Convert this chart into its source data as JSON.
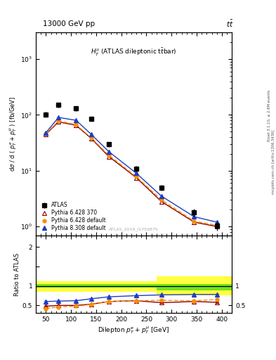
{
  "title_top": "13000 GeV pp",
  "title_right": "t$\\bar{t}$",
  "plot_label": "$H_T^{ll}$ (ATLAS dileptonic t$\\bar{t}$bar)",
  "watermark": "ATLAS_2019_I1759875",
  "xlabel": "Dilepton $p_T^e + p_T^{\\mu}$ [GeV]",
  "ylabel": "d$\\sigma$ / d ( $p_T^e + p_T^{\\mu}$ ) [fb/GeV]",
  "ylabel_ratio": "Ratio to ATLAS",
  "xlim": [
    30,
    420
  ],
  "ylim_main": [
    0.7,
    3000
  ],
  "ylim_ratio": [
    0.3,
    2.3
  ],
  "atlas_x": [
    50,
    75,
    110,
    140,
    175,
    230,
    280,
    345,
    390
  ],
  "atlas_y": [
    102,
    150,
    130,
    85,
    30,
    11,
    5.0,
    1.8,
    1.05
  ],
  "atlas_yerr": [
    10,
    15,
    13,
    8,
    3,
    1.2,
    0.6,
    0.3,
    0.2
  ],
  "py6_370_x": [
    50,
    75,
    110,
    140,
    175,
    230,
    280,
    345,
    390
  ],
  "py6_370_y": [
    45,
    75,
    65,
    38,
    18,
    7.5,
    2.8,
    1.2,
    1.0
  ],
  "py6_default_x": [
    50,
    75,
    110,
    140,
    175,
    230,
    280,
    345,
    390
  ],
  "py6_default_y": [
    46,
    78,
    67,
    39,
    19,
    7.8,
    3.0,
    1.25,
    1.05
  ],
  "py8_default_x": [
    50,
    75,
    110,
    140,
    175,
    230,
    280,
    345,
    390
  ],
  "py8_default_y": [
    48,
    90,
    80,
    45,
    22,
    9.0,
    3.5,
    1.5,
    1.2
  ],
  "ratio_py6_370": [
    0.48,
    0.5,
    0.5,
    0.53,
    0.6,
    0.62,
    0.57,
    0.6,
    0.58
  ],
  "ratio_py6_default": [
    0.42,
    0.46,
    0.48,
    0.52,
    0.6,
    0.62,
    0.63,
    0.62,
    0.65
  ],
  "ratio_py8_default": [
    0.6,
    0.61,
    0.62,
    0.67,
    0.72,
    0.75,
    0.77,
    0.78,
    0.78
  ],
  "ratio_err_py6_370": [
    0.015,
    0.012,
    0.012,
    0.012,
    0.012,
    0.015,
    0.018,
    0.02,
    0.025
  ],
  "ratio_err_py6_default": [
    0.015,
    0.012,
    0.012,
    0.012,
    0.012,
    0.015,
    0.018,
    0.02,
    0.025
  ],
  "ratio_err_py8_default": [
    0.015,
    0.01,
    0.01,
    0.01,
    0.01,
    0.012,
    0.015,
    0.015,
    0.02
  ],
  "color_py6_370": "#8B0000",
  "color_py6_default": "#FF8C00",
  "color_py8_default": "#1E3FBF",
  "color_atlas": "black",
  "right_label1": "Rivet 3.1.10, ≥ 2.8M events",
  "right_label2": "mcplots.cern.ch [arXiv:1306.3436]"
}
